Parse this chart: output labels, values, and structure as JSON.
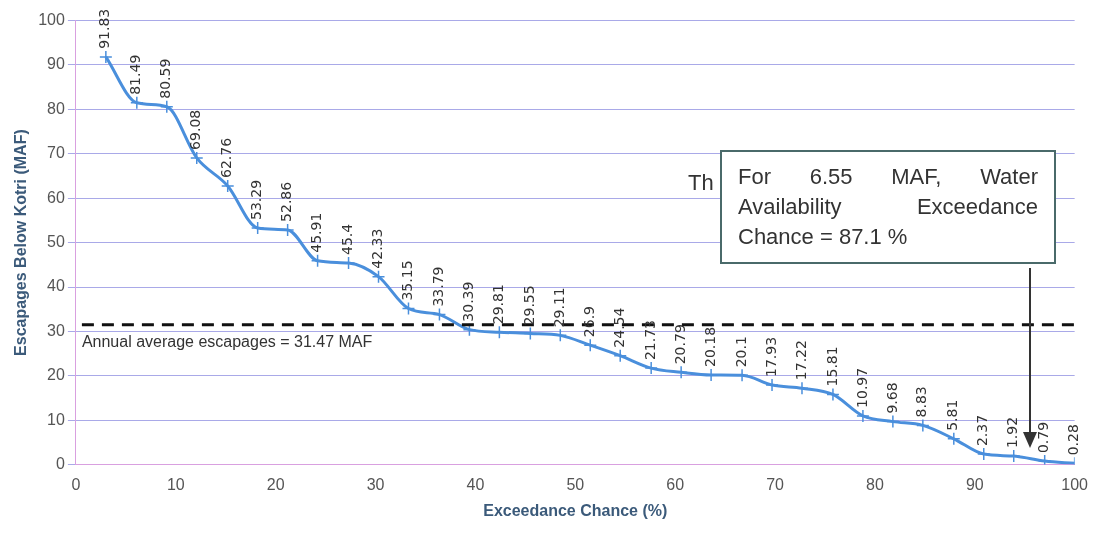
{
  "chart_data": {
    "type": "line",
    "xlabel": "Exceedance Chance (%)",
    "ylabel": "Escapages Below Kotri (MAF)",
    "x": [
      3,
      6.1,
      9.1,
      12.1,
      15.2,
      18.2,
      21.2,
      24.2,
      27.3,
      30.3,
      33.3,
      36.4,
      39.4,
      42.4,
      45.5,
      48.5,
      51.5,
      54.5,
      57.6,
      60.6,
      63.6,
      66.7,
      69.7,
      72.7,
      75.8,
      78.8,
      81.8,
      84.8,
      87.9,
      90.9,
      93.9,
      97,
      100
    ],
    "values": [
      91.83,
      81.49,
      80.59,
      69.08,
      62.76,
      53.29,
      52.86,
      45.91,
      45.4,
      42.33,
      35.15,
      33.79,
      30.39,
      29.81,
      29.55,
      29.11,
      26.9,
      24.54,
      21.73,
      20.79,
      20.18,
      20.1,
      17.93,
      17.22,
      15.81,
      10.97,
      9.68,
      8.83,
      5.81,
      2.37,
      1.92,
      0.79,
      0.28
    ],
    "color": "#4a8fdc",
    "marker": "cross",
    "data_labels": true,
    "grid": "y",
    "xlim": [
      0,
      100
    ],
    "xticks": [
      0,
      10,
      20,
      30,
      40,
      50,
      60,
      70,
      80,
      90,
      100
    ],
    "ylim": [
      0,
      100
    ],
    "yticks": [
      0,
      10,
      20,
      30,
      40,
      50,
      60,
      70,
      80,
      90,
      100
    ],
    "ref_lines": [
      {
        "axis": "y",
        "value": 31.47,
        "label": "Annual average escapages = 31.47 MAF",
        "color": "#111111",
        "line_style": "dashed"
      }
    ],
    "annotations": [
      "Th",
      "For 6.55 MAF, Water Availability Exceedance Chance = 87.1 %"
    ]
  }
}
